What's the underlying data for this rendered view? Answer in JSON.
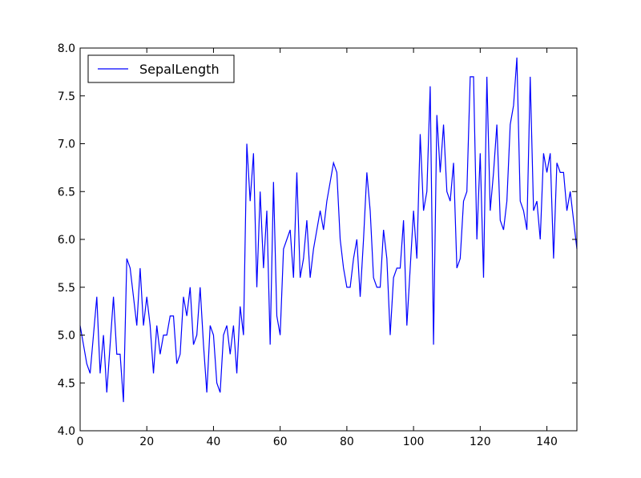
{
  "chart_data": {
    "type": "line",
    "title": "",
    "xlabel": "",
    "ylabel": "",
    "xlim": [
      0,
      149
    ],
    "ylim": [
      4.0,
      8.0
    ],
    "x_ticks": [
      0,
      20,
      40,
      60,
      80,
      100,
      120,
      140
    ],
    "x_tick_labels": [
      "0",
      "20",
      "40",
      "60",
      "80",
      "100",
      "120",
      "140"
    ],
    "y_ticks": [
      4.0,
      4.5,
      5.0,
      5.5,
      6.0,
      6.5,
      7.0,
      7.5,
      8.0
    ],
    "y_tick_labels": [
      "4.0",
      "4.5",
      "5.0",
      "5.5",
      "6.0",
      "6.5",
      "7.0",
      "7.5",
      "8.0"
    ],
    "grid": false,
    "legend_position": "top-left",
    "series": [
      {
        "name": "SepalLength",
        "color": "#0000ff",
        "values": [
          5.1,
          4.9,
          4.7,
          4.6,
          5.0,
          5.4,
          4.6,
          5.0,
          4.4,
          4.9,
          5.4,
          4.8,
          4.8,
          4.3,
          5.8,
          5.7,
          5.4,
          5.1,
          5.7,
          5.1,
          5.4,
          5.1,
          4.6,
          5.1,
          4.8,
          5.0,
          5.0,
          5.2,
          5.2,
          4.7,
          4.8,
          5.4,
          5.2,
          5.5,
          4.9,
          5.0,
          5.5,
          4.9,
          4.4,
          5.1,
          5.0,
          4.5,
          4.4,
          5.0,
          5.1,
          4.8,
          5.1,
          4.6,
          5.3,
          5.0,
          7.0,
          6.4,
          6.9,
          5.5,
          6.5,
          5.7,
          6.3,
          4.9,
          6.6,
          5.2,
          5.0,
          5.9,
          6.0,
          6.1,
          5.6,
          6.7,
          5.6,
          5.8,
          6.2,
          5.6,
          5.9,
          6.1,
          6.3,
          6.1,
          6.4,
          6.6,
          6.8,
          6.7,
          6.0,
          5.7,
          5.5,
          5.5,
          5.8,
          6.0,
          5.4,
          6.0,
          6.7,
          6.3,
          5.6,
          5.5,
          5.5,
          6.1,
          5.8,
          5.0,
          5.6,
          5.7,
          5.7,
          6.2,
          5.1,
          5.7,
          6.3,
          5.8,
          7.1,
          6.3,
          6.5,
          7.6,
          4.9,
          7.3,
          6.7,
          7.2,
          6.5,
          6.4,
          6.8,
          5.7,
          5.8,
          6.4,
          6.5,
          7.7,
          7.7,
          6.0,
          6.9,
          5.6,
          7.7,
          6.3,
          6.7,
          7.2,
          6.2,
          6.1,
          6.4,
          7.2,
          7.4,
          7.9,
          6.4,
          6.3,
          6.1,
          7.7,
          6.3,
          6.4,
          6.0,
          6.9,
          6.7,
          6.9,
          5.8,
          6.8,
          6.7,
          6.7,
          6.3,
          6.5,
          6.2,
          5.9
        ]
      }
    ]
  }
}
